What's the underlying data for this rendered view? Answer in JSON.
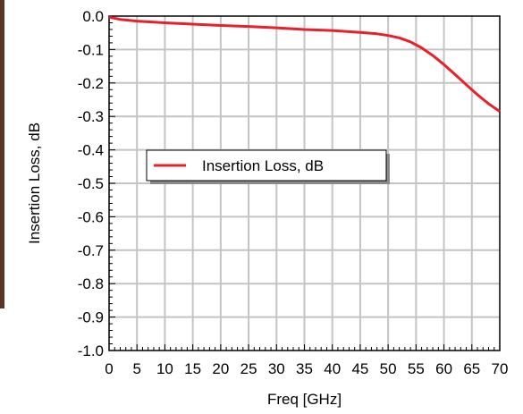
{
  "chart_data": {
    "type": "line",
    "title": "",
    "xlabel": "Freq [GHz]",
    "ylabel": "Insertion Loss, dB",
    "xlim": [
      0,
      70
    ],
    "ylim": [
      -1.0,
      0.0
    ],
    "x_ticks": [
      "0",
      "5",
      "10",
      "15",
      "20",
      "25",
      "30",
      "35",
      "40",
      "45",
      "50",
      "55",
      "60",
      "65",
      "70"
    ],
    "y_ticks": [
      "0.0",
      "-0.1",
      "-0.2",
      "-0.3",
      "-0.4",
      "-0.5",
      "-0.6",
      "-0.7",
      "-0.8",
      "-0.9",
      "-1.0"
    ],
    "grid": true,
    "legend_position": "middle-left",
    "series": [
      {
        "name": "Insertion Loss, dB",
        "color": "#e8202a",
        "x": [
          0,
          2,
          5,
          10,
          15,
          20,
          25,
          30,
          35,
          40,
          45,
          48,
          50,
          52,
          54,
          56,
          58,
          60,
          62,
          64,
          66,
          68,
          70
        ],
        "y": [
          -0.003,
          -0.01,
          -0.015,
          -0.02,
          -0.024,
          -0.028,
          -0.031,
          -0.035,
          -0.04,
          -0.043,
          -0.049,
          -0.053,
          -0.058,
          -0.065,
          -0.077,
          -0.095,
          -0.118,
          -0.145,
          -0.175,
          -0.205,
          -0.235,
          -0.262,
          -0.285
        ]
      }
    ]
  }
}
